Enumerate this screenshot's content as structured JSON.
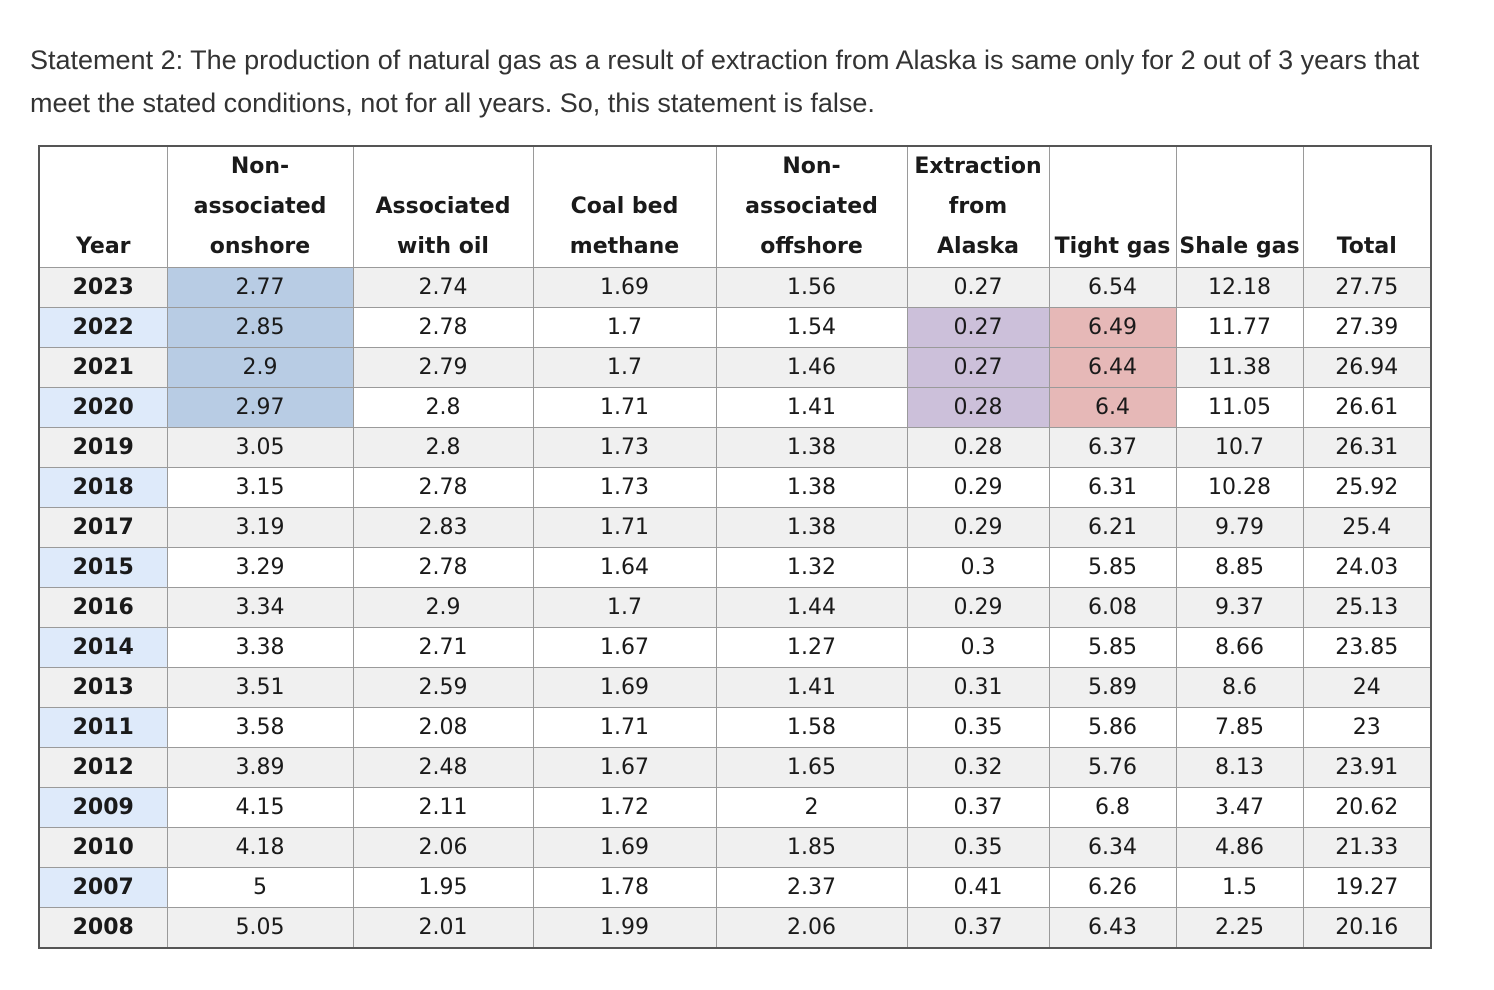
{
  "statement": "Statement 2: The production of natural gas as a result of extraction from Alaska is same only for 2 out of 3 years that meet the stated conditions, not for all years. So, this statement is false.",
  "table": {
    "headers": [
      [
        "Year"
      ],
      [
        "Non-",
        "associated",
        "onshore"
      ],
      [
        "Associated",
        "with oil"
      ],
      [
        "Coal bed",
        "methane"
      ],
      [
        "Non-",
        "associated",
        "offshore"
      ],
      [
        "Extraction",
        "from",
        "Alaska"
      ],
      [
        "Tight gas"
      ],
      [
        "Shale gas"
      ],
      [
        "Total"
      ]
    ],
    "rows": [
      [
        "2023",
        "2.77",
        "2.74",
        "1.69",
        "1.56",
        "0.27",
        "6.54",
        "12.18",
        "27.75"
      ],
      [
        "2022",
        "2.85",
        "2.78",
        "1.7",
        "1.54",
        "0.27",
        "6.49",
        "11.77",
        "27.39"
      ],
      [
        "2021",
        "2.9",
        "2.79",
        "1.7",
        "1.46",
        "0.27",
        "6.44",
        "11.38",
        "26.94"
      ],
      [
        "2020",
        "2.97",
        "2.8",
        "1.71",
        "1.41",
        "0.28",
        "6.4",
        "11.05",
        "26.61"
      ],
      [
        "2019",
        "3.05",
        "2.8",
        "1.73",
        "1.38",
        "0.28",
        "6.37",
        "10.7",
        "26.31"
      ],
      [
        "2018",
        "3.15",
        "2.78",
        "1.73",
        "1.38",
        "0.29",
        "6.31",
        "10.28",
        "25.92"
      ],
      [
        "2017",
        "3.19",
        "2.83",
        "1.71",
        "1.38",
        "0.29",
        "6.21",
        "9.79",
        "25.4"
      ],
      [
        "2015",
        "3.29",
        "2.78",
        "1.64",
        "1.32",
        "0.3",
        "5.85",
        "8.85",
        "24.03"
      ],
      [
        "2016",
        "3.34",
        "2.9",
        "1.7",
        "1.44",
        "0.29",
        "6.08",
        "9.37",
        "25.13"
      ],
      [
        "2014",
        "3.38",
        "2.71",
        "1.67",
        "1.27",
        "0.3",
        "5.85",
        "8.66",
        "23.85"
      ],
      [
        "2013",
        "3.51",
        "2.59",
        "1.69",
        "1.41",
        "0.31",
        "5.89",
        "8.6",
        "24"
      ],
      [
        "2011",
        "3.58",
        "2.08",
        "1.71",
        "1.58",
        "0.35",
        "5.86",
        "7.85",
        "23"
      ],
      [
        "2012",
        "3.89",
        "2.48",
        "1.67",
        "1.65",
        "0.32",
        "5.76",
        "8.13",
        "23.91"
      ],
      [
        "2009",
        "4.15",
        "2.11",
        "1.72",
        "2",
        "0.37",
        "6.8",
        "3.47",
        "20.62"
      ],
      [
        "2010",
        "4.18",
        "2.06",
        "1.69",
        "1.85",
        "0.35",
        "6.34",
        "4.86",
        "21.33"
      ],
      [
        "2007",
        "5",
        "1.95",
        "1.78",
        "2.37",
        "0.41",
        "6.26",
        "1.5",
        "19.27"
      ],
      [
        "2008",
        "5.05",
        "2.01",
        "1.99",
        "2.06",
        "0.37",
        "6.43",
        "2.25",
        "20.16"
      ]
    ],
    "highlights": [
      {
        "row": 0,
        "col": 1,
        "color": "blue"
      },
      {
        "row": 1,
        "col": 1,
        "color": "blue"
      },
      {
        "row": 2,
        "col": 1,
        "color": "blue"
      },
      {
        "row": 3,
        "col": 1,
        "color": "blue"
      },
      {
        "row": 1,
        "col": 5,
        "color": "purple"
      },
      {
        "row": 2,
        "col": 5,
        "color": "purple"
      },
      {
        "row": 3,
        "col": 5,
        "color": "purple"
      },
      {
        "row": 1,
        "col": 6,
        "color": "red"
      },
      {
        "row": 2,
        "col": 6,
        "color": "red"
      },
      {
        "row": 3,
        "col": 6,
        "color": "red"
      }
    ],
    "colors": {
      "blue": "#b8cce4",
      "purple": "#ccc0da",
      "red": "#e6b8b7",
      "year_alt": "#deeafa",
      "row_alt": "#f0f0f0"
    }
  }
}
